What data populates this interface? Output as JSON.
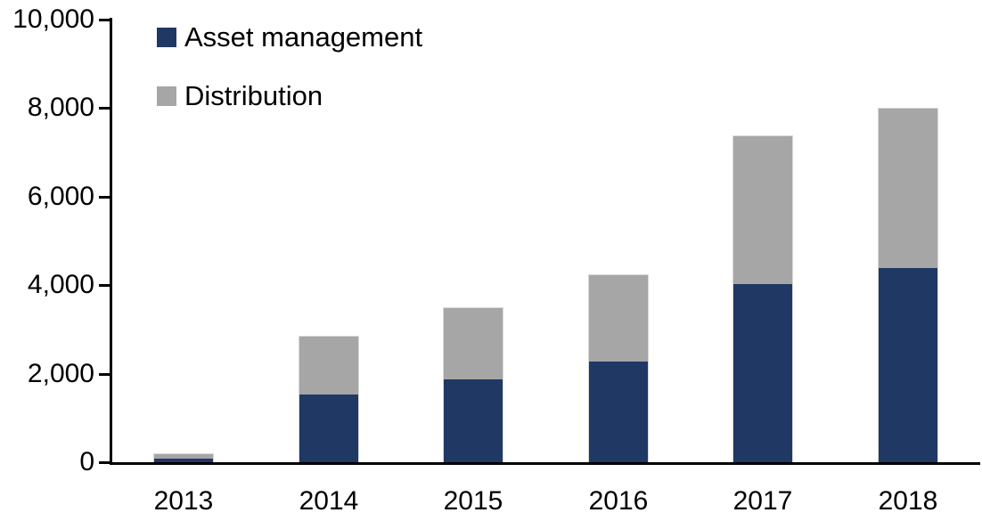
{
  "chart_data": {
    "type": "bar",
    "stacked": true,
    "title": "",
    "xlabel": "",
    "ylabel": "",
    "categories": [
      "2013",
      "2014",
      "2015",
      "2016",
      "2017",
      "2018"
    ],
    "series": [
      {
        "name": "Asset management",
        "color": "#1F3864",
        "values": [
          80,
          1550,
          1900,
          2300,
          4050,
          4400
        ]
      },
      {
        "name": "Distribution",
        "color": "#A6A6A6",
        "values": [
          120,
          1300,
          1600,
          1950,
          3350,
          3600
        ]
      }
    ],
    "totals": [
      200,
      2850,
      3500,
      4250,
      7400,
      8000
    ],
    "ylim": [
      0,
      10000
    ],
    "ytick_interval": 2000,
    "ytick_labels": [
      "0",
      "2,000",
      "4,000",
      "6,000",
      "8,000",
      "10,000"
    ],
    "grid": false,
    "legend_position": "top-left"
  },
  "colors": {
    "background": "#FFFFFF",
    "axis": "#000000",
    "text": "#000000",
    "bar_border": "#D9D9D9",
    "asset_management": "#1F3864",
    "distribution": "#A6A6A6"
  }
}
